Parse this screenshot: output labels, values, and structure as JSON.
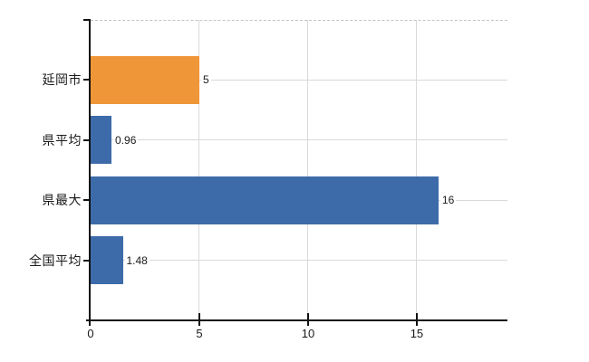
{
  "chart_data": {
    "type": "bar",
    "orientation": "horizontal",
    "title": "",
    "legend": "none",
    "categories": [
      "延岡市",
      "県平均",
      "県最大",
      "全国平均"
    ],
    "values": [
      5,
      0.96,
      16,
      1.48
    ],
    "value_labels": [
      "5",
      "0.96",
      "16",
      "1.48"
    ],
    "bar_colors": [
      "#EF9639",
      "#3D6BA9",
      "#3D6BA9",
      "#3D6BA9"
    ],
    "x_ticks": [
      0,
      5,
      10,
      15
    ],
    "x_tick_labels": [
      "0",
      "5",
      "10",
      "15"
    ],
    "xlim": [
      0,
      19.17
    ],
    "gridlines": {
      "vertical_at": [
        5,
        10,
        15
      ],
      "row_guides": true,
      "top_border_dashed": true
    }
  },
  "colors": {
    "background": "#ffffff",
    "bar_orange": "#EF9639",
    "bar_blue": "#3D6BA9",
    "gridline": "#D9D9D9",
    "top_border": "#C4C4C4",
    "axis": "#111111",
    "text": "#1A1A1A"
  }
}
